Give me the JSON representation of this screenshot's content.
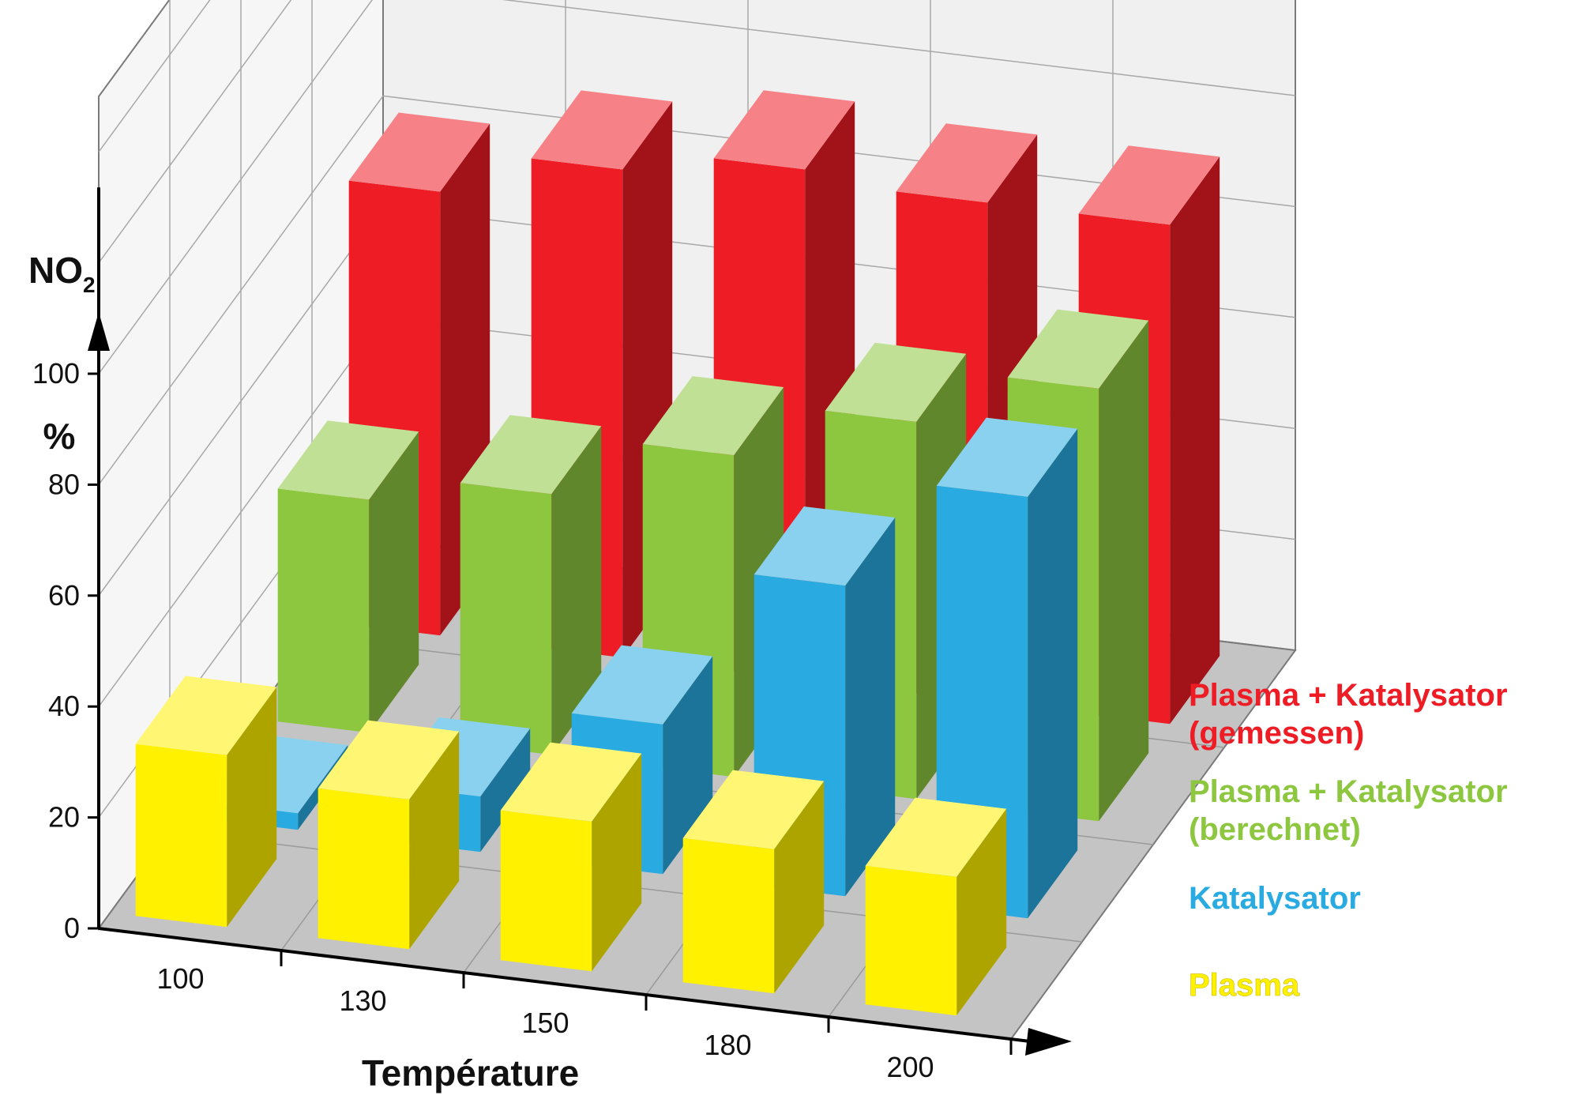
{
  "chart_data": {
    "type": "bar",
    "subtype": "3d-grouped",
    "xlabel": "Température",
    "ylabel": "NO",
    "ylabel_subscript": "2",
    "yunit": "%",
    "ylim": [
      0,
      100
    ],
    "yticks": [
      0,
      20,
      40,
      60,
      80,
      100
    ],
    "categories": [
      "100",
      "130",
      "150",
      "180",
      "200"
    ],
    "grid": true,
    "legend_position": "right",
    "series": [
      {
        "name": "Plasma + Katalysator (gemessen)",
        "legend_lines": [
          "Plasma + Katalysator",
          "(gemessen)"
        ],
        "color": "#ee1c25",
        "values": [
          80,
          88,
          92,
          90,
          90
        ]
      },
      {
        "name": "Plasma + Katalysator (berechnet)",
        "legend_lines": [
          "Plasma + Katalysator",
          "(berechnet)"
        ],
        "color": "#8dc63f",
        "values": [
          42,
          47,
          58,
          68,
          78
        ]
      },
      {
        "name": "Katalysator",
        "legend_lines": [
          "Katalysator"
        ],
        "color": "#29abe2",
        "values": [
          3,
          10,
          27,
          56,
          76
        ]
      },
      {
        "name": "Plasma",
        "legend_lines": [
          "Plasma"
        ],
        "color": "#fff100",
        "values": [
          31,
          27,
          27,
          26,
          25
        ]
      }
    ]
  }
}
